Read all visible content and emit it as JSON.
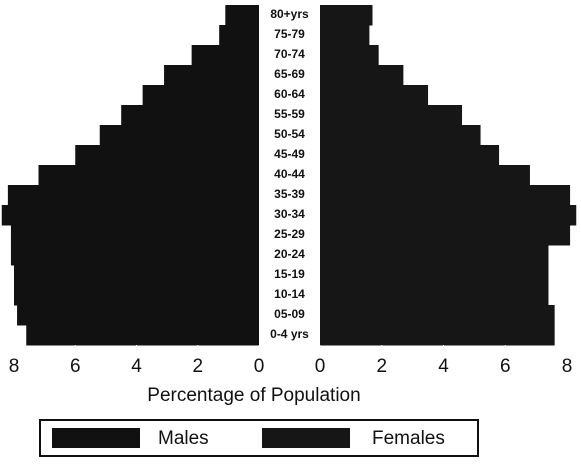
{
  "chart_data": {
    "type": "population-pyramid",
    "x_label": "Percentage of Population",
    "categories": [
      "80+yrs",
      "75-79",
      "70-74",
      "65-69",
      "60-64",
      "55-59",
      "50-54",
      "45-49",
      "40-44",
      "35-39",
      "30-34",
      "25-29",
      "20-24",
      "15-19",
      "10-14",
      "05-09",
      "0-4 yrs"
    ],
    "series": [
      {
        "name": "Males",
        "color": "#111111",
        "values": [
          1.1,
          1.3,
          2.2,
          3.1,
          3.8,
          4.5,
          5.2,
          6.0,
          7.2,
          8.2,
          8.4,
          8.1,
          8.1,
          8.0,
          8.0,
          7.9,
          7.6
        ]
      },
      {
        "name": "Females",
        "color": "#161616",
        "values": [
          1.7,
          1.6,
          1.9,
          2.7,
          3.5,
          4.6,
          5.2,
          5.8,
          6.8,
          8.1,
          8.3,
          8.1,
          7.4,
          7.4,
          7.4,
          7.6,
          7.6
        ]
      }
    ],
    "xlim": [
      0,
      8
    ],
    "xticks": [
      0,
      2,
      4,
      6,
      8
    ]
  }
}
